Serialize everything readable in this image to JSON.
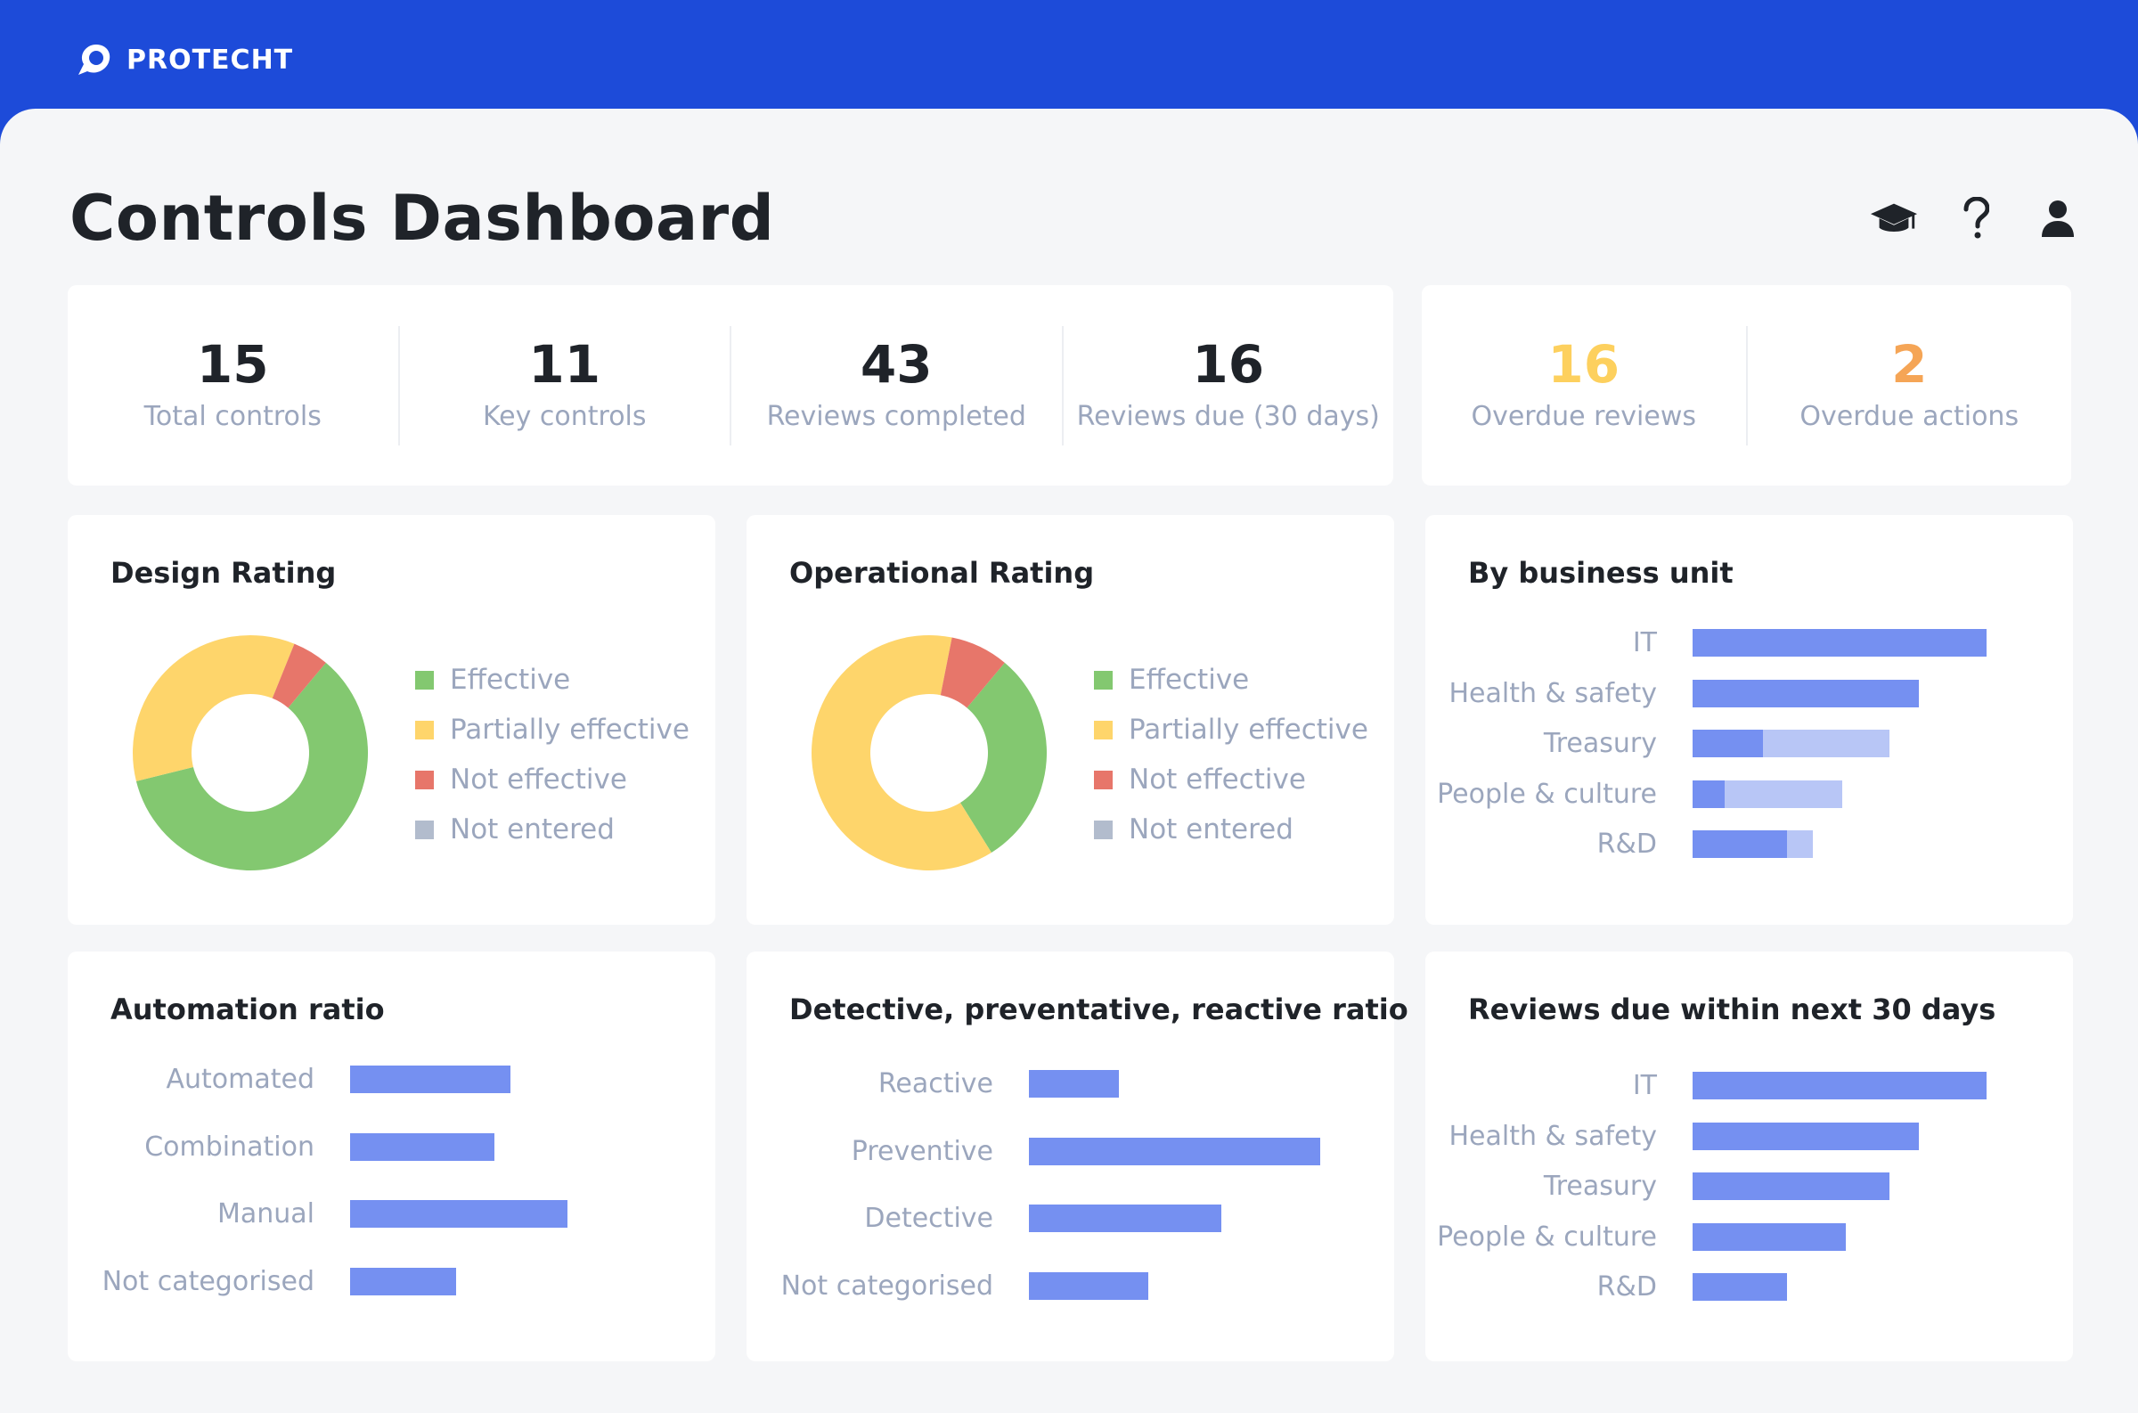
{
  "brand": {
    "name": "PROTECHT"
  },
  "page": {
    "title": "Controls Dashboard"
  },
  "header_icons": [
    "graduation-cap-icon",
    "help-icon",
    "user-icon"
  ],
  "stats": [
    {
      "value": "15",
      "label": "Total controls"
    },
    {
      "value": "11",
      "label": "Key controls"
    },
    {
      "value": "43",
      "label": "Reviews completed"
    },
    {
      "value": "16",
      "label": "Reviews due (30 days)"
    }
  ],
  "alerts": [
    {
      "value": "16",
      "label": "Overdue reviews",
      "color": "#fdd05e"
    },
    {
      "value": "2",
      "label": "Overdue actions",
      "color": "#f5a556"
    }
  ],
  "colors": {
    "effective": "#83c870",
    "partially_effective": "#fed56b",
    "not_effective": "#e7766a",
    "not_entered": "#b2bccd",
    "bar_primary": "#7590f1",
    "bar_secondary": "#b8c6f6",
    "brand_blue": "#1d4bd9"
  },
  "legend": {
    "effective": "Effective",
    "partially": "Partially effective",
    "not_effective": "Not effective",
    "not_entered": "Not entered"
  },
  "design_rating": {
    "title": "Design Rating"
  },
  "operational_rating": {
    "title": "Operational Rating"
  },
  "business_unit": {
    "title": "By business unit"
  },
  "automation": {
    "title": "Automation ratio"
  },
  "detective": {
    "title": "Detective, preventative, reactive ratio"
  },
  "reviews_due": {
    "title": "Reviews due within next 30 days"
  },
  "chart_data": [
    {
      "id": "design",
      "type": "pie",
      "title": "Design Rating",
      "categories": [
        "Effective",
        "Partially effective",
        "Not effective",
        "Not entered"
      ],
      "values": [
        60,
        35,
        5,
        0
      ]
    },
    {
      "id": "operational",
      "type": "pie",
      "title": "Operational Rating",
      "categories": [
        "Effective",
        "Partially effective",
        "Not effective",
        "Not entered"
      ],
      "values": [
        30,
        62,
        8,
        0
      ]
    },
    {
      "id": "business_unit",
      "type": "bar",
      "orientation": "horizontal",
      "stacked": true,
      "title": "By business unit",
      "categories": [
        "IT",
        "Health & safety",
        "Treasury",
        "People & culture",
        "R&D"
      ],
      "series": [
        {
          "values": [
            10,
            7.7,
            2.4,
            1.1,
            3.2
          ]
        },
        {
          "values": [
            0,
            0,
            4.3,
            4.0,
            0.9
          ]
        }
      ],
      "xlim": [
        0,
        10
      ]
    },
    {
      "id": "automation",
      "type": "bar",
      "orientation": "horizontal",
      "title": "Automation ratio",
      "categories": [
        "Automated",
        "Combination",
        "Manual",
        "Not categorised"
      ],
      "values": [
        6.2,
        5.6,
        8.4,
        4.1
      ],
      "xlim": [
        0,
        10
      ]
    },
    {
      "id": "detective",
      "type": "bar",
      "orientation": "horizontal",
      "title": "Detective, preventative, reactive ratio",
      "categories": [
        "Reactive",
        "Preventive",
        "Detective",
        "Not categorised"
      ],
      "values": [
        3.1,
        10,
        6.6,
        4.1
      ],
      "xlim": [
        0,
        10
      ]
    },
    {
      "id": "reviews_due",
      "type": "bar",
      "orientation": "horizontal",
      "title": "Reviews due within next 30 days",
      "categories": [
        "IT",
        "Health & safety",
        "Treasury",
        "People & culture",
        "R&D"
      ],
      "values": [
        10,
        7.7,
        6.7,
        5.2,
        3.2
      ],
      "xlim": [
        0,
        10
      ]
    }
  ]
}
